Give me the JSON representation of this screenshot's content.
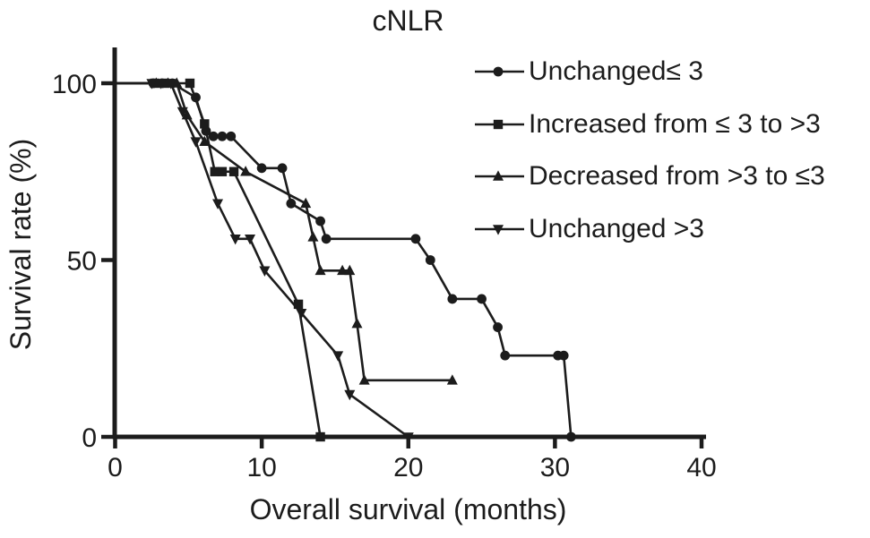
{
  "background_color": "#ffffff",
  "chart_data": {
    "type": "line",
    "title": "cNLR",
    "xlabel": "Overall survival (months)",
    "ylabel": "Survival rate (%)",
    "xlim": [
      0,
      40
    ],
    "ylim": [
      0,
      100
    ],
    "x_ticks": [
      0,
      10,
      20,
      30,
      40
    ],
    "y_ticks": [
      0,
      50,
      100
    ],
    "grid": false,
    "legend_position": "upper right",
    "line_color": "#1c1c1c",
    "marker_icons": [
      "circle-icon",
      "square-icon",
      "triangle-up-icon",
      "triangle-down-icon"
    ],
    "series": [
      {
        "name": "Unchanged≤ 3",
        "marker": "circle",
        "points": [
          [
            2.6,
            100
          ],
          [
            3.2,
            100
          ],
          [
            3.9,
            100
          ],
          [
            5.5,
            96
          ],
          [
            6.2,
            86.5
          ],
          [
            6.7,
            85
          ],
          [
            7.3,
            85
          ],
          [
            7.9,
            85
          ],
          [
            10,
            76
          ],
          [
            11.4,
            76
          ],
          [
            12,
            66
          ],
          [
            14,
            61
          ],
          [
            14.4,
            56
          ],
          [
            20.5,
            56
          ],
          [
            21.5,
            50
          ],
          [
            23,
            39
          ],
          [
            25,
            39
          ],
          [
            26.1,
            31
          ],
          [
            26.6,
            23
          ],
          [
            30.2,
            23
          ],
          [
            30.6,
            23
          ],
          [
            31.1,
            0
          ]
        ]
      },
      {
        "name": "Increased from ≤ 3 to >3",
        "marker": "square",
        "points": [
          [
            2.7,
            100
          ],
          [
            3.4,
            100
          ],
          [
            5.1,
            100
          ],
          [
            6.1,
            88.5
          ],
          [
            6.8,
            75
          ],
          [
            7.3,
            75
          ],
          [
            8.1,
            75
          ],
          [
            12.5,
            37.5
          ],
          [
            14,
            0
          ]
        ]
      },
      {
        "name": "Decreased from >3 to ≤3",
        "marker": "triangle-up",
        "points": [
          [
            2.8,
            100
          ],
          [
            3.6,
            100
          ],
          [
            4.2,
            100
          ],
          [
            4.9,
            91
          ],
          [
            6.1,
            83.5
          ],
          [
            8.9,
            75
          ],
          [
            13,
            66
          ],
          [
            13.5,
            56.5
          ],
          [
            14,
            47
          ],
          [
            15.5,
            47
          ],
          [
            16,
            47
          ],
          [
            16.5,
            32
          ],
          [
            17,
            16
          ],
          [
            23,
            16
          ]
        ]
      },
      {
        "name": "Unchanged >3",
        "marker": "triangle-down",
        "points": [
          [
            2.5,
            100
          ],
          [
            3.1,
            100
          ],
          [
            3.8,
            100
          ],
          [
            4.6,
            92
          ],
          [
            5.5,
            83.5
          ],
          [
            7,
            66
          ],
          [
            8.2,
            56
          ],
          [
            9.2,
            56
          ],
          [
            10.2,
            47
          ],
          [
            12.7,
            35
          ],
          [
            15.2,
            23
          ],
          [
            16,
            12
          ],
          [
            20,
            0
          ]
        ]
      }
    ]
  }
}
